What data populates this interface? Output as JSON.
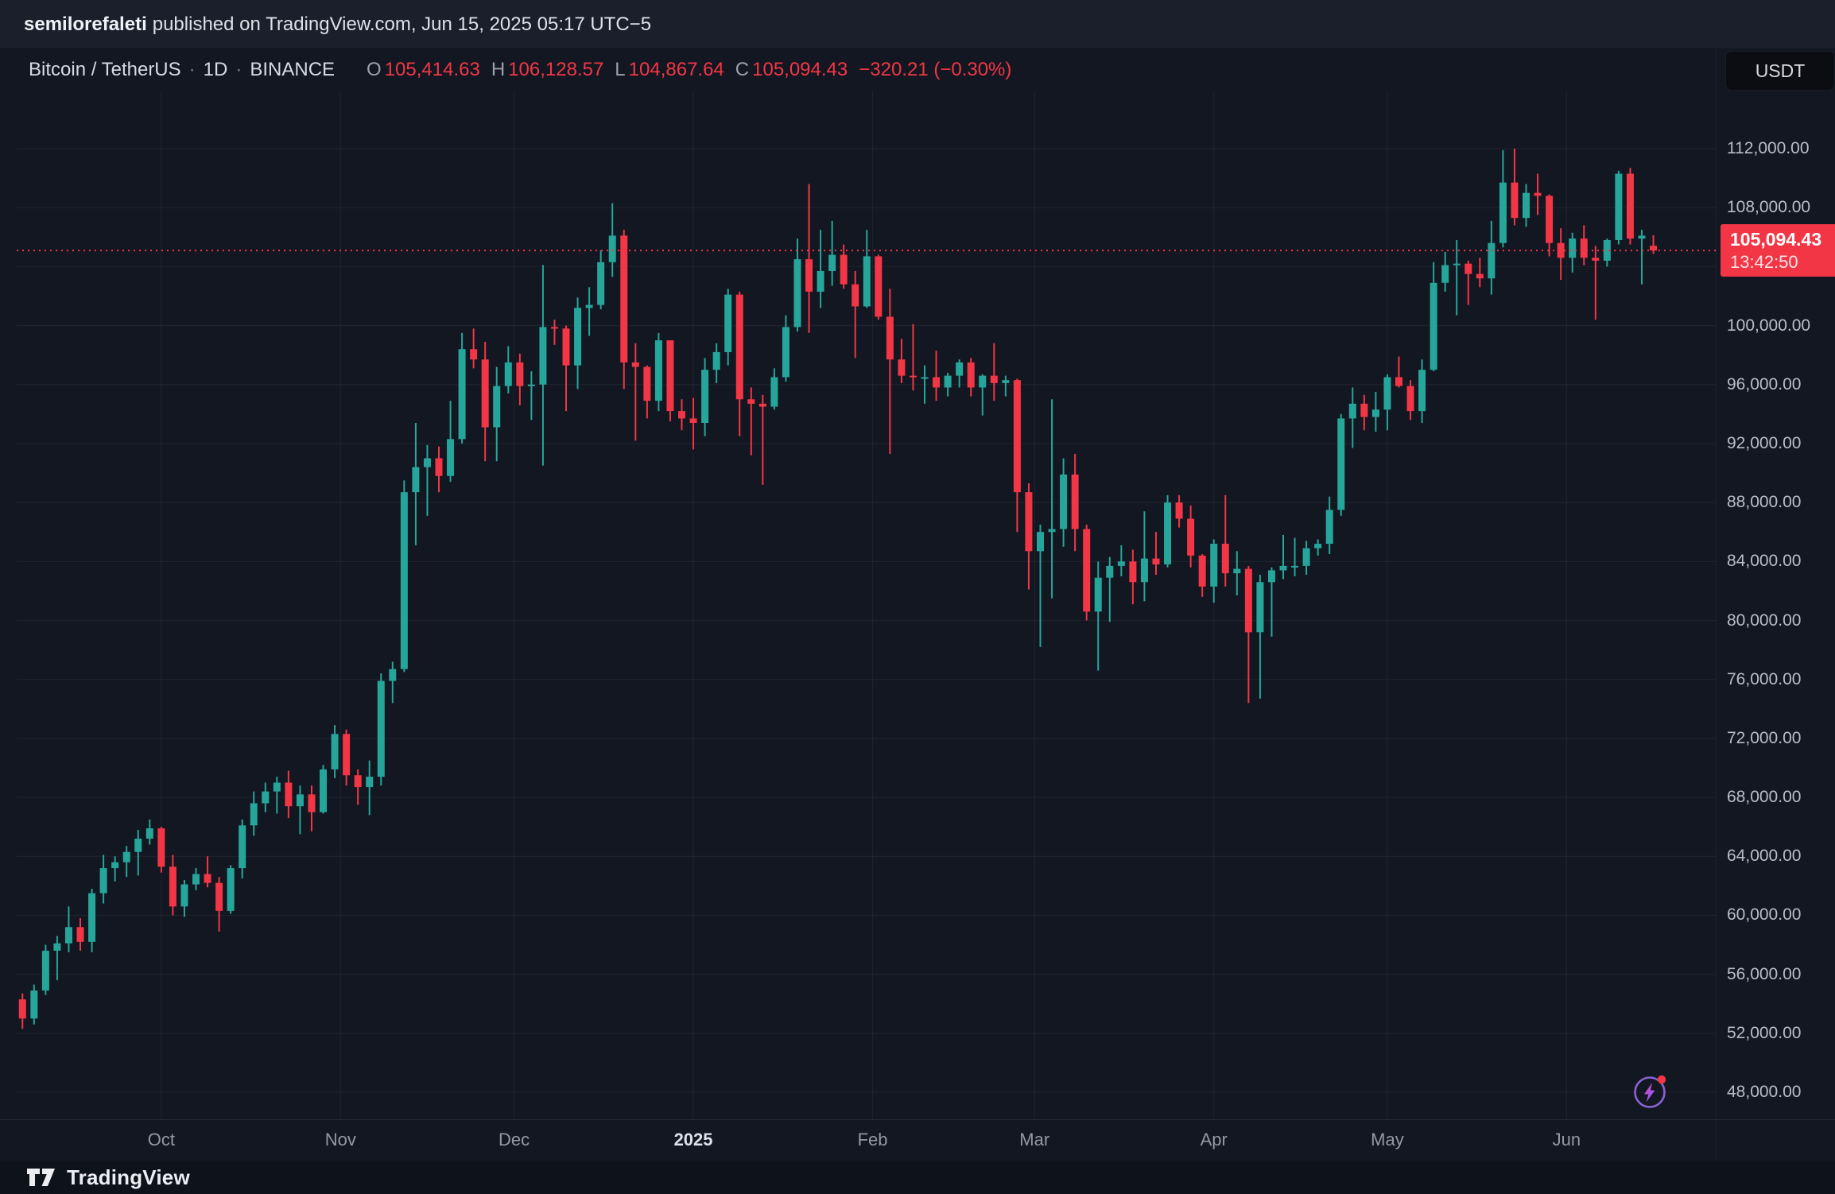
{
  "top_bar": {
    "author": "semilorefaleti",
    "suffix": "published on TradingView.com, Jun 15, 2025 05:17 UTC−5"
  },
  "header": {
    "symbol": "Bitcoin / TetherUS",
    "separator": "·",
    "interval": "1D",
    "exchange": "BINANCE",
    "ohlc": [
      {
        "k": "O",
        "v": "105,414.63"
      },
      {
        "k": "H",
        "v": "106,128.57"
      },
      {
        "k": "L",
        "v": "104,867.64"
      },
      {
        "k": "C",
        "v": "105,094.43"
      }
    ],
    "change": "−320.21 (−0.30%)",
    "currency_button": "USDT"
  },
  "price_badge": {
    "price": "105,094.43",
    "countdown": "13:42:50"
  },
  "footer": {
    "brand": "TradingView"
  },
  "colors": {
    "up": "#26a69a",
    "down": "#f23645",
    "badge": "#f23645",
    "grid": "rgba(255,255,255,0.055)",
    "price_line": "#f23645",
    "background": "#131722"
  },
  "chart_data": {
    "type": "candlestick",
    "title": "Bitcoin / TetherUS · 1D · BINANCE",
    "pair": "BTC/USDT",
    "exchange": "BINANCE",
    "interval": "1D",
    "current": {
      "open": 105414.63,
      "high": 106128.57,
      "low": 104867.64,
      "close": 105094.43,
      "change": -320.21,
      "change_percent": -0.3,
      "countdown": "13:42:50"
    },
    "y_axis": {
      "grid_min": 48000,
      "grid_max": 112000,
      "grid_step": 4000,
      "tick_labels": [
        {
          "value": 112000,
          "label": "112,000.00"
        },
        {
          "value": 108000,
          "label": "108,000.00"
        },
        {
          "value": 100000,
          "label": "100,000.00"
        },
        {
          "value": 96000,
          "label": "96,000.00"
        },
        {
          "value": 92000,
          "label": "92,000.00"
        },
        {
          "value": 88000,
          "label": "88,000.00"
        },
        {
          "value": 84000,
          "label": "84,000.00"
        },
        {
          "value": 80000,
          "label": "80,000.00"
        },
        {
          "value": 76000,
          "label": "76,000.00"
        },
        {
          "value": 72000,
          "label": "72,000.00"
        },
        {
          "value": 68000,
          "label": "68,000.00"
        },
        {
          "value": 64000,
          "label": "64,000.00"
        },
        {
          "value": 60000,
          "label": "60,000.00"
        },
        {
          "value": 56000,
          "label": "56,000.00"
        },
        {
          "value": 52000,
          "label": "52,000.00"
        },
        {
          "value": 48000,
          "label": "48,000.00"
        }
      ]
    },
    "x_axis": {
      "tick_labels": [
        {
          "label": "Oct",
          "slot": 12.5
        },
        {
          "label": "Nov",
          "slot": 28
        },
        {
          "label": "Dec",
          "slot": 43
        },
        {
          "label": "2025",
          "slot": 58.5,
          "strong": true
        },
        {
          "label": "Feb",
          "slot": 74
        },
        {
          "label": "Mar",
          "slot": 88
        },
        {
          "label": "Apr",
          "slot": 103.5
        },
        {
          "label": "May",
          "slot": 118.5
        },
        {
          "label": "Jun",
          "slot": 134
        }
      ]
    },
    "total_slots": 146,
    "candles": [
      [
        54300,
        54700,
        52300,
        53000
      ],
      [
        53000,
        55300,
        52600,
        54900
      ],
      [
        54900,
        58000,
        54600,
        57600
      ],
      [
        57600,
        58600,
        55600,
        58100
      ],
      [
        58100,
        60600,
        57500,
        59200
      ],
      [
        59200,
        59800,
        57600,
        58200
      ],
      [
        58200,
        61800,
        57500,
        61500
      ],
      [
        61500,
        64100,
        60800,
        63200
      ],
      [
        63200,
        64000,
        62300,
        63600
      ],
      [
        63600,
        64700,
        62600,
        64300
      ],
      [
        64300,
        65800,
        62700,
        65200
      ],
      [
        65200,
        66500,
        64800,
        65900
      ],
      [
        65900,
        66000,
        62900,
        63300
      ],
      [
        63300,
        64100,
        60000,
        60600
      ],
      [
        60600,
        62400,
        59900,
        62100
      ],
      [
        62100,
        63200,
        61700,
        62800
      ],
      [
        62800,
        64000,
        61900,
        62200
      ],
      [
        62200,
        62600,
        58900,
        60300
      ],
      [
        60300,
        63400,
        60100,
        63200
      ],
      [
        63200,
        66500,
        62500,
        66100
      ],
      [
        66100,
        68400,
        65400,
        67600
      ],
      [
        67600,
        69000,
        67000,
        68400
      ],
      [
        68400,
        69400,
        66900,
        69000
      ],
      [
        69000,
        69800,
        66600,
        67400
      ],
      [
        67400,
        68800,
        65500,
        68200
      ],
      [
        68200,
        68800,
        65700,
        67000
      ],
      [
        67000,
        70200,
        66900,
        69900
      ],
      [
        69900,
        72900,
        69300,
        72300
      ],
      [
        72300,
        72600,
        68800,
        69500
      ],
      [
        69500,
        69900,
        67500,
        68700
      ],
      [
        68700,
        70500,
        66800,
        69400
      ],
      [
        69400,
        76400,
        68800,
        75900
      ],
      [
        75900,
        77200,
        74400,
        76700
      ],
      [
        76700,
        89500,
        76500,
        88700
      ],
      [
        88700,
        93400,
        85100,
        90400
      ],
      [
        90400,
        91900,
        87100,
        91000
      ],
      [
        91000,
        91800,
        88700,
        89800
      ],
      [
        89800,
        94900,
        89400,
        92300
      ],
      [
        92300,
        99500,
        92000,
        98400
      ],
      [
        98400,
        99800,
        97100,
        97700
      ],
      [
        97700,
        98900,
        90800,
        93100
      ],
      [
        93100,
        97200,
        90800,
        95900
      ],
      [
        95900,
        98600,
        95400,
        97500
      ],
      [
        97500,
        98100,
        94600,
        95900
      ],
      [
        95900,
        96900,
        93600,
        96000
      ],
      [
        96000,
        104100,
        90500,
        99900
      ],
      [
        99900,
        100400,
        98700,
        99800
      ],
      [
        99800,
        100000,
        94200,
        97300
      ],
      [
        97300,
        101900,
        95700,
        101200
      ],
      [
        101200,
        102600,
        99300,
        101400
      ],
      [
        101400,
        105100,
        101100,
        104300
      ],
      [
        104300,
        108300,
        103300,
        106100
      ],
      [
        106100,
        106500,
        95700,
        97500
      ],
      [
        97500,
        98800,
        92200,
        97200
      ],
      [
        97200,
        97300,
        93700,
        94900
      ],
      [
        94900,
        99500,
        94200,
        99000
      ],
      [
        99000,
        99000,
        93500,
        94200
      ],
      [
        94200,
        95000,
        92900,
        93700
      ],
      [
        93700,
        95100,
        91600,
        93400
      ],
      [
        93400,
        97800,
        92500,
        97000
      ],
      [
        97000,
        98800,
        96100,
        98200
      ],
      [
        98200,
        102500,
        97300,
        102100
      ],
      [
        102100,
        102300,
        92500,
        95000
      ],
      [
        95000,
        95800,
        91200,
        94700
      ],
      [
        94700,
        95300,
        89200,
        94500
      ],
      [
        94500,
        97100,
        94300,
        96500
      ],
      [
        96500,
        100700,
        96200,
        99900
      ],
      [
        99900,
        105900,
        99600,
        104500
      ],
      [
        104500,
        109600,
        99500,
        102300
      ],
      [
        102300,
        106500,
        101200,
        103700
      ],
      [
        103700,
        107100,
        102700,
        104800
      ],
      [
        104800,
        105500,
        102500,
        102800
      ],
      [
        102800,
        103700,
        97800,
        101300
      ],
      [
        101300,
        106500,
        101200,
        104700
      ],
      [
        104700,
        104800,
        100400,
        100600
      ],
      [
        100600,
        102500,
        91300,
        97700
      ],
      [
        97700,
        99100,
        96100,
        96600
      ],
      [
        96600,
        100100,
        95600,
        96500
      ],
      [
        96500,
        97300,
        94700,
        96500
      ],
      [
        96500,
        98300,
        94900,
        95800
      ],
      [
        95800,
        96800,
        95200,
        96600
      ],
      [
        96600,
        97700,
        95800,
        97500
      ],
      [
        97500,
        97800,
        95200,
        95800
      ],
      [
        95800,
        96700,
        93900,
        96600
      ],
      [
        96600,
        98800,
        94900,
        96100
      ],
      [
        96100,
        96600,
        95200,
        96300
      ],
      [
        96300,
        96400,
        86000,
        88700
      ],
      [
        88700,
        89300,
        82100,
        84700
      ],
      [
        84700,
        86500,
        78200,
        86000
      ],
      [
        86000,
        95000,
        81500,
        86200
      ],
      [
        86200,
        91000,
        85000,
        89900
      ],
      [
        89900,
        91300,
        84700,
        86200
      ],
      [
        86200,
        86500,
        80000,
        80600
      ],
      [
        80600,
        84000,
        76600,
        82900
      ],
      [
        82900,
        84300,
        79900,
        83700
      ],
      [
        83700,
        85100,
        83000,
        84000
      ],
      [
        84000,
        84800,
        81100,
        82600
      ],
      [
        82600,
        87400,
        81300,
        84200
      ],
      [
        84200,
        86000,
        83100,
        83800
      ],
      [
        83800,
        88500,
        83600,
        88000
      ],
      [
        88000,
        88500,
        86300,
        86900
      ],
      [
        86900,
        87800,
        83600,
        84400
      ],
      [
        84400,
        84500,
        81600,
        82300
      ],
      [
        82300,
        85500,
        81200,
        85200
      ],
      [
        85200,
        88500,
        82300,
        83200
      ],
      [
        83200,
        84700,
        81700,
        83500
      ],
      [
        83500,
        83700,
        74400,
        79200
      ],
      [
        79200,
        83100,
        74700,
        82600
      ],
      [
        82600,
        83600,
        78900,
        83400
      ],
      [
        83400,
        85800,
        82800,
        83700
      ],
      [
        83700,
        85600,
        83000,
        83700
      ],
      [
        83700,
        85400,
        83100,
        84900
      ],
      [
        84900,
        85500,
        84400,
        85200
      ],
      [
        85200,
        88400,
        84500,
        87500
      ],
      [
        87500,
        94000,
        87100,
        93700
      ],
      [
        93700,
        95800,
        91700,
        94700
      ],
      [
        94700,
        95300,
        92900,
        93800
      ],
      [
        93800,
        95500,
        92800,
        94300
      ],
      [
        94300,
        96700,
        92900,
        96500
      ],
      [
        96500,
        97900,
        95800,
        95900
      ],
      [
        95900,
        96300,
        93600,
        94200
      ],
      [
        94200,
        97700,
        93400,
        97000
      ],
      [
        97000,
        104300,
        96900,
        102900
      ],
      [
        102900,
        105000,
        102300,
        104100
      ],
      [
        104100,
        105800,
        100700,
        104200
      ],
      [
        104200,
        104400,
        101400,
        103500
      ],
      [
        103500,
        104600,
        102600,
        103200
      ],
      [
        103200,
        107100,
        102100,
        105600
      ],
      [
        105600,
        111900,
        105300,
        109700
      ],
      [
        109700,
        112000,
        106800,
        107300
      ],
      [
        107300,
        109600,
        106700,
        109000
      ],
      [
        109000,
        110300,
        107500,
        108800
      ],
      [
        108800,
        108900,
        104700,
        105600
      ],
      [
        105600,
        106600,
        103100,
        104600
      ],
      [
        104600,
        106300,
        103600,
        105900
      ],
      [
        105900,
        106800,
        104100,
        104600
      ],
      [
        104600,
        105400,
        100400,
        104400
      ],
      [
        104400,
        105900,
        104000,
        105800
      ],
      [
        105800,
        110500,
        105500,
        110300
      ],
      [
        110300,
        110700,
        105500,
        105900
      ],
      [
        105900,
        106500,
        102800,
        106100
      ],
      [
        105414.63,
        106128.57,
        104867.64,
        105094.43
      ]
    ]
  }
}
